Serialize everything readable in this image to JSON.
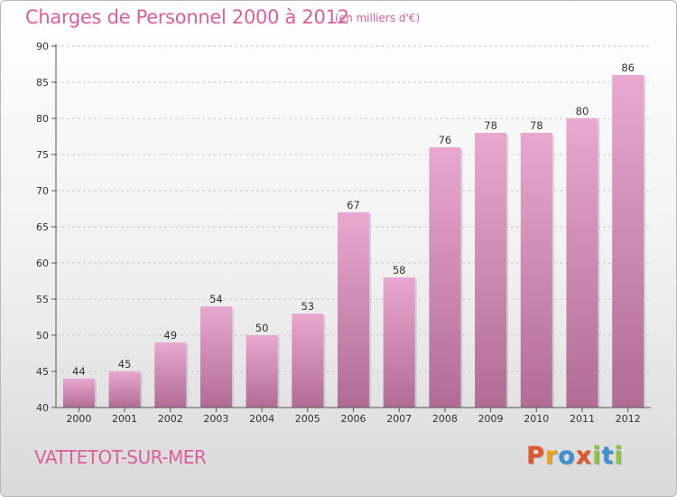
{
  "header": {
    "title": "Charges de Personnel 2000 à 2012",
    "subtitle": "(en milliers d'€)"
  },
  "footer": {
    "commune": "VATTETOT-SUR-MER",
    "brand": "Proxiti"
  },
  "colors": {
    "accent": "#d9609c",
    "bar_top": "#e9a8cf",
    "bar_bottom": "#b06c95",
    "brand_letters": [
      "#e2542b",
      "#f0a21a",
      "#3d8fd6",
      "#e2542b",
      "#8dc63f",
      "#3d8fd6",
      "#8dc63f"
    ]
  },
  "chart_data": {
    "type": "bar",
    "title": "Charges de Personnel 2000 à 2012",
    "subtitle": "(en milliers d'€)",
    "xlabel": "",
    "ylabel": "",
    "categories": [
      "2000",
      "2001",
      "2002",
      "2003",
      "2004",
      "2005",
      "2006",
      "2007",
      "2008",
      "2009",
      "2010",
      "2011",
      "2012"
    ],
    "values": [
      44,
      45,
      49,
      54,
      50,
      53,
      67,
      58,
      76,
      78,
      78,
      80,
      86
    ],
    "ylim": [
      40,
      90
    ],
    "yticks": [
      40,
      45,
      50,
      55,
      60,
      65,
      70,
      75,
      80,
      85,
      90
    ],
    "grid": true
  }
}
